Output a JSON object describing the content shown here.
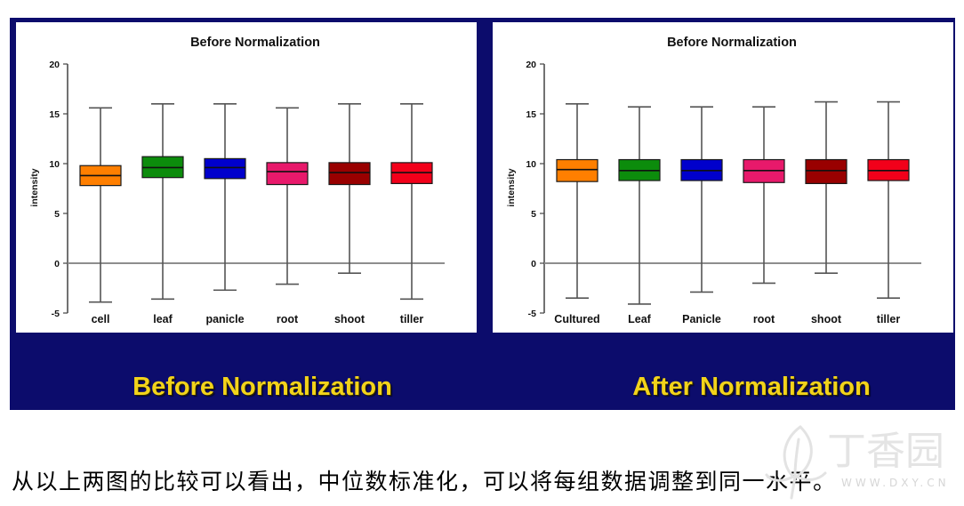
{
  "colors": {
    "panel_background": "#0c0c6c",
    "caption_text": "#f2d31b"
  },
  "figure_captions": [
    "Before Normalization",
    "After Normalization"
  ],
  "paragraph": "从以上两图的比较可以看出，中位数标准化，可以将每组数据调整到同一水平。",
  "watermark": {
    "brand": "丁香园",
    "site": "WWW.DXY.CN"
  },
  "chart_data": [
    {
      "type": "box",
      "title": "Before Normalization",
      "ylabel": "intensity",
      "ylim": [
        -5,
        20
      ],
      "yticks": [
        20,
        15,
        10,
        5,
        0,
        -5
      ],
      "reference_line_y": 0,
      "grid": false,
      "categories": [
        "cell",
        "leaf",
        "panicle",
        "root",
        "shoot",
        "tiller"
      ],
      "boxes": [
        {
          "min": -3.9,
          "q1": 7.8,
          "median": 8.8,
          "q3": 9.8,
          "max": 15.6,
          "color": "#ff7f00"
        },
        {
          "min": -3.6,
          "q1": 8.6,
          "median": 9.6,
          "q3": 10.7,
          "max": 16.0,
          "color": "#0c8c0c"
        },
        {
          "min": -2.7,
          "q1": 8.5,
          "median": 9.6,
          "q3": 10.5,
          "max": 16.0,
          "color": "#0000cc"
        },
        {
          "min": -2.1,
          "q1": 7.9,
          "median": 9.2,
          "q3": 10.1,
          "max": 15.6,
          "color": "#e8196b"
        },
        {
          "min": -1.0,
          "q1": 7.9,
          "median": 9.1,
          "q3": 10.1,
          "max": 16.0,
          "color": "#990000"
        },
        {
          "min": -3.6,
          "q1": 8.0,
          "median": 9.1,
          "q3": 10.1,
          "max": 16.0,
          "color": "#f2001a"
        }
      ]
    },
    {
      "type": "box",
      "title": "Before Normalization",
      "ylabel": "intensity",
      "ylim": [
        -5,
        20
      ],
      "yticks": [
        20,
        15,
        10,
        5,
        0,
        -5
      ],
      "reference_line_y": 0,
      "grid": false,
      "categories": [
        "Cultured",
        "Leaf",
        "Panicle",
        "root",
        "shoot",
        "tiller"
      ],
      "boxes": [
        {
          "min": -3.5,
          "q1": 8.2,
          "median": 9.4,
          "q3": 10.4,
          "max": 16.0,
          "color": "#ff7f00"
        },
        {
          "min": -4.1,
          "q1": 8.3,
          "median": 9.3,
          "q3": 10.4,
          "max": 15.7,
          "color": "#0c8c0c"
        },
        {
          "min": -2.9,
          "q1": 8.3,
          "median": 9.3,
          "q3": 10.4,
          "max": 15.7,
          "color": "#0000cc"
        },
        {
          "min": -2.0,
          "q1": 8.1,
          "median": 9.3,
          "q3": 10.4,
          "max": 15.7,
          "color": "#e8196b"
        },
        {
          "min": -1.0,
          "q1": 8.0,
          "median": 9.3,
          "q3": 10.4,
          "max": 16.2,
          "color": "#990000"
        },
        {
          "min": -3.5,
          "q1": 8.3,
          "median": 9.3,
          "q3": 10.4,
          "max": 16.2,
          "color": "#f2001a"
        }
      ]
    }
  ]
}
